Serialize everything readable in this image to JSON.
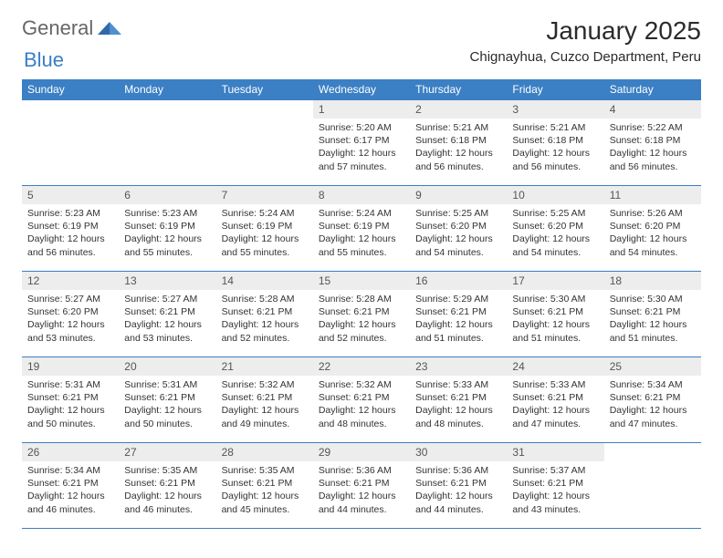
{
  "logo": {
    "part1": "General",
    "part2": "Blue"
  },
  "title": "January 2025",
  "location": "Chignayhua, Cuzco Department, Peru",
  "colors": {
    "header_bg": "#3b7fc4",
    "daynum_bg": "#ededed",
    "border": "#3b7fc4",
    "text": "#333333",
    "logo_gray": "#666666",
    "logo_blue": "#3b7fc4",
    "page_bg": "#ffffff"
  },
  "fonts": {
    "title_size": 28,
    "location_size": 15,
    "header_size": 12,
    "daynum_size": 12,
    "body_size": 10.5
  },
  "weekdays": [
    "Sunday",
    "Monday",
    "Tuesday",
    "Wednesday",
    "Thursday",
    "Friday",
    "Saturday"
  ],
  "weeks": [
    [
      {
        "day": "",
        "lines": []
      },
      {
        "day": "",
        "lines": []
      },
      {
        "day": "",
        "lines": []
      },
      {
        "day": "1",
        "lines": [
          "Sunrise: 5:20 AM",
          "Sunset: 6:17 PM",
          "Daylight: 12 hours and 57 minutes."
        ]
      },
      {
        "day": "2",
        "lines": [
          "Sunrise: 5:21 AM",
          "Sunset: 6:18 PM",
          "Daylight: 12 hours and 56 minutes."
        ]
      },
      {
        "day": "3",
        "lines": [
          "Sunrise: 5:21 AM",
          "Sunset: 6:18 PM",
          "Daylight: 12 hours and 56 minutes."
        ]
      },
      {
        "day": "4",
        "lines": [
          "Sunrise: 5:22 AM",
          "Sunset: 6:18 PM",
          "Daylight: 12 hours and 56 minutes."
        ]
      }
    ],
    [
      {
        "day": "5",
        "lines": [
          "Sunrise: 5:23 AM",
          "Sunset: 6:19 PM",
          "Daylight: 12 hours and 56 minutes."
        ]
      },
      {
        "day": "6",
        "lines": [
          "Sunrise: 5:23 AM",
          "Sunset: 6:19 PM",
          "Daylight: 12 hours and 55 minutes."
        ]
      },
      {
        "day": "7",
        "lines": [
          "Sunrise: 5:24 AM",
          "Sunset: 6:19 PM",
          "Daylight: 12 hours and 55 minutes."
        ]
      },
      {
        "day": "8",
        "lines": [
          "Sunrise: 5:24 AM",
          "Sunset: 6:19 PM",
          "Daylight: 12 hours and 55 minutes."
        ]
      },
      {
        "day": "9",
        "lines": [
          "Sunrise: 5:25 AM",
          "Sunset: 6:20 PM",
          "Daylight: 12 hours and 54 minutes."
        ]
      },
      {
        "day": "10",
        "lines": [
          "Sunrise: 5:25 AM",
          "Sunset: 6:20 PM",
          "Daylight: 12 hours and 54 minutes."
        ]
      },
      {
        "day": "11",
        "lines": [
          "Sunrise: 5:26 AM",
          "Sunset: 6:20 PM",
          "Daylight: 12 hours and 54 minutes."
        ]
      }
    ],
    [
      {
        "day": "12",
        "lines": [
          "Sunrise: 5:27 AM",
          "Sunset: 6:20 PM",
          "Daylight: 12 hours and 53 minutes."
        ]
      },
      {
        "day": "13",
        "lines": [
          "Sunrise: 5:27 AM",
          "Sunset: 6:21 PM",
          "Daylight: 12 hours and 53 minutes."
        ]
      },
      {
        "day": "14",
        "lines": [
          "Sunrise: 5:28 AM",
          "Sunset: 6:21 PM",
          "Daylight: 12 hours and 52 minutes."
        ]
      },
      {
        "day": "15",
        "lines": [
          "Sunrise: 5:28 AM",
          "Sunset: 6:21 PM",
          "Daylight: 12 hours and 52 minutes."
        ]
      },
      {
        "day": "16",
        "lines": [
          "Sunrise: 5:29 AM",
          "Sunset: 6:21 PM",
          "Daylight: 12 hours and 51 minutes."
        ]
      },
      {
        "day": "17",
        "lines": [
          "Sunrise: 5:30 AM",
          "Sunset: 6:21 PM",
          "Daylight: 12 hours and 51 minutes."
        ]
      },
      {
        "day": "18",
        "lines": [
          "Sunrise: 5:30 AM",
          "Sunset: 6:21 PM",
          "Daylight: 12 hours and 51 minutes."
        ]
      }
    ],
    [
      {
        "day": "19",
        "lines": [
          "Sunrise: 5:31 AM",
          "Sunset: 6:21 PM",
          "Daylight: 12 hours and 50 minutes."
        ]
      },
      {
        "day": "20",
        "lines": [
          "Sunrise: 5:31 AM",
          "Sunset: 6:21 PM",
          "Daylight: 12 hours and 50 minutes."
        ]
      },
      {
        "day": "21",
        "lines": [
          "Sunrise: 5:32 AM",
          "Sunset: 6:21 PM",
          "Daylight: 12 hours and 49 minutes."
        ]
      },
      {
        "day": "22",
        "lines": [
          "Sunrise: 5:32 AM",
          "Sunset: 6:21 PM",
          "Daylight: 12 hours and 48 minutes."
        ]
      },
      {
        "day": "23",
        "lines": [
          "Sunrise: 5:33 AM",
          "Sunset: 6:21 PM",
          "Daylight: 12 hours and 48 minutes."
        ]
      },
      {
        "day": "24",
        "lines": [
          "Sunrise: 5:33 AM",
          "Sunset: 6:21 PM",
          "Daylight: 12 hours and 47 minutes."
        ]
      },
      {
        "day": "25",
        "lines": [
          "Sunrise: 5:34 AM",
          "Sunset: 6:21 PM",
          "Daylight: 12 hours and 47 minutes."
        ]
      }
    ],
    [
      {
        "day": "26",
        "lines": [
          "Sunrise: 5:34 AM",
          "Sunset: 6:21 PM",
          "Daylight: 12 hours and 46 minutes."
        ]
      },
      {
        "day": "27",
        "lines": [
          "Sunrise: 5:35 AM",
          "Sunset: 6:21 PM",
          "Daylight: 12 hours and 46 minutes."
        ]
      },
      {
        "day": "28",
        "lines": [
          "Sunrise: 5:35 AM",
          "Sunset: 6:21 PM",
          "Daylight: 12 hours and 45 minutes."
        ]
      },
      {
        "day": "29",
        "lines": [
          "Sunrise: 5:36 AM",
          "Sunset: 6:21 PM",
          "Daylight: 12 hours and 44 minutes."
        ]
      },
      {
        "day": "30",
        "lines": [
          "Sunrise: 5:36 AM",
          "Sunset: 6:21 PM",
          "Daylight: 12 hours and 44 minutes."
        ]
      },
      {
        "day": "31",
        "lines": [
          "Sunrise: 5:37 AM",
          "Sunset: 6:21 PM",
          "Daylight: 12 hours and 43 minutes."
        ]
      },
      {
        "day": "",
        "lines": []
      }
    ]
  ]
}
